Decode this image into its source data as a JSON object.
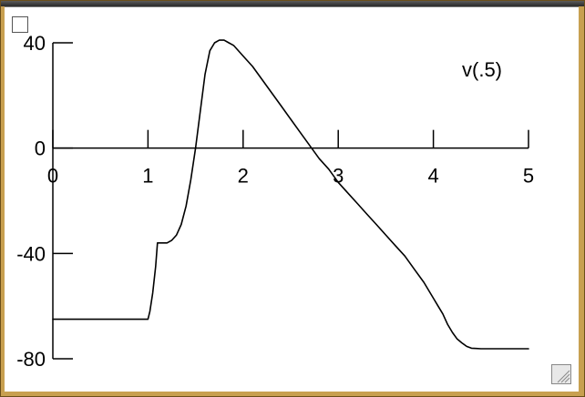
{
  "chart_data": {
    "type": "line",
    "series_label": "v(.5)",
    "xlim": [
      0,
      5
    ],
    "ylim": [
      -80,
      40
    ],
    "x_ticks": [
      {
        "value": 0,
        "label": "0"
      },
      {
        "value": 1,
        "label": "1"
      },
      {
        "value": 2,
        "label": "2"
      },
      {
        "value": 3,
        "label": "3"
      },
      {
        "value": 4,
        "label": "4"
      },
      {
        "value": 5,
        "label": "5"
      }
    ],
    "y_ticks": [
      {
        "value": 40,
        "label": "40"
      },
      {
        "value": 0,
        "label": "0"
      },
      {
        "value": -40,
        "label": "-40"
      },
      {
        "value": -80,
        "label": "-80"
      }
    ],
    "grid": false,
    "line_color": "#000000",
    "series": [
      {
        "x": [
          0,
          1.0,
          1.02,
          1.05,
          1.08,
          1.1,
          1.15,
          1.2,
          1.25,
          1.3,
          1.35,
          1.4,
          1.45,
          1.5,
          1.55,
          1.6,
          1.65,
          1.7,
          1.75,
          1.8,
          1.85,
          1.9,
          2.0,
          2.1,
          2.2,
          2.3,
          2.4,
          2.5,
          2.6,
          2.7,
          2.8,
          2.9,
          3.0,
          3.1,
          3.2,
          3.3,
          3.4,
          3.5,
          3.6,
          3.7,
          3.8,
          3.9,
          4.0,
          4.05,
          4.1,
          4.15,
          4.2,
          4.25,
          4.3,
          4.35,
          4.4,
          4.45,
          4.5,
          4.6,
          4.7,
          4.8,
          4.9,
          5.0
        ],
        "y": [
          -65,
          -65,
          -62,
          -55,
          -45,
          -36,
          -36,
          -36,
          -35,
          -33,
          -29,
          -22,
          -12,
          0,
          14,
          28,
          37,
          40,
          41,
          41,
          40,
          39,
          35,
          31,
          26,
          21,
          16,
          11,
          6,
          1,
          -4,
          -8,
          -13,
          -17,
          -21,
          -25,
          -29,
          -33,
          -37,
          -41,
          -46,
          -51,
          -57,
          -60,
          -63,
          -67,
          -70,
          -72.5,
          -74,
          -75.3,
          -76,
          -76.1,
          -76.2,
          -76.2,
          -76.2,
          -76.2,
          -76.2,
          -76.2
        ]
      }
    ]
  }
}
